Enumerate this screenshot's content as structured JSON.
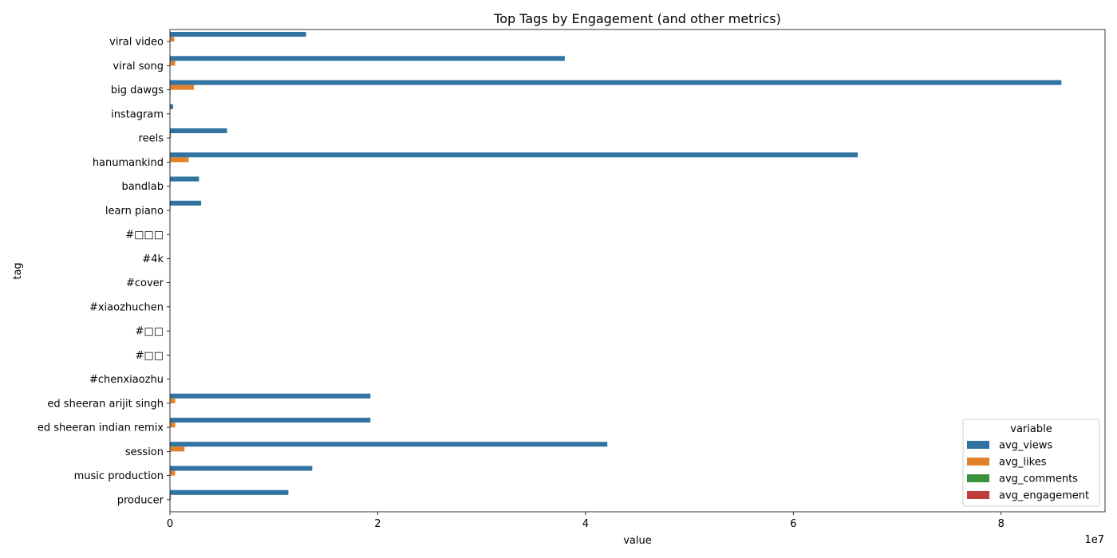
{
  "chart_data": {
    "type": "bar",
    "orientation": "horizontal",
    "title": "Top Tags by Engagement (and other metrics)",
    "xlabel": "value",
    "ylabel": "tag",
    "x_offset_label": "1e7",
    "x_ticks": [
      "0",
      "2",
      "4",
      "6",
      "8"
    ],
    "xlim": [
      0,
      9.0
    ],
    "categories": [
      "viral video",
      "viral song",
      "big dawgs",
      "instagram",
      "reels",
      "hanumankind",
      "bandlab",
      "learn piano",
      "#□□□",
      "#4k",
      "#cover",
      "#xiaozhuchen",
      "#□□",
      "#□□",
      "#chenxiaozhu",
      "ed sheeran arijit singh",
      "ed sheeran indian remix",
      "session",
      "music production",
      "producer"
    ],
    "series": [
      {
        "name": "avg_views",
        "color": "#3274a1",
        "values": [
          1.31,
          3.8,
          8.58,
          0.03,
          0.55,
          6.62,
          0.28,
          0.3,
          0,
          0,
          0,
          0,
          0,
          0,
          0,
          1.93,
          1.93,
          4.21,
          1.37,
          1.14
        ]
      },
      {
        "name": "avg_likes",
        "color": "#e1812c",
        "values": [
          0.04,
          0.05,
          0.23,
          0.003,
          0.01,
          0.18,
          0.005,
          0.005,
          0,
          0,
          0,
          0,
          0,
          0,
          0,
          0.05,
          0.05,
          0.14,
          0.05,
          0.01
        ]
      },
      {
        "name": "avg_comments",
        "color": "#3a923a",
        "values": [
          0.001,
          0.001,
          0.005,
          0,
          0,
          0.004,
          0,
          0,
          0,
          0,
          0,
          0,
          0,
          0,
          0,
          0.001,
          0.001,
          0.002,
          0.001,
          0
        ]
      },
      {
        "name": "avg_engagement",
        "color": "#c03d3e",
        "values": [
          0,
          0,
          0,
          0,
          0,
          0,
          0,
          0,
          0,
          0,
          0,
          0,
          0,
          0,
          0,
          0,
          0,
          0,
          0,
          0
        ]
      }
    ],
    "legend": {
      "title": "variable",
      "placement": "bottom-right"
    },
    "grid": false
  }
}
